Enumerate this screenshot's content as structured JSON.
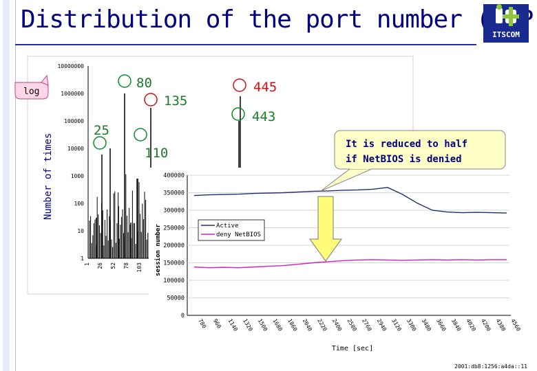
{
  "slide": {
    "title": "Distribution of the port number (TCP)",
    "footer": "2001:db8:1256:a4da::11"
  },
  "logo": {
    "text": "ITSCOM",
    "colors": {
      "bg": "#1a2b8f",
      "accent": "#8dc63f"
    }
  },
  "histogram": {
    "ylabel": "Number of times",
    "scale_note": "log",
    "yticks": [
      "10000000",
      "1000000",
      "100000",
      "10000",
      "1000",
      "100",
      "10",
      "1"
    ],
    "xticks": [
      "1",
      "26",
      "52",
      "78",
      "103"
    ],
    "callouts": [
      {
        "label": "80"
      },
      {
        "label": "135"
      },
      {
        "label": "445"
      },
      {
        "label": "443"
      },
      {
        "label": "25"
      },
      {
        "label": "110"
      }
    ]
  },
  "session_chart": {
    "ylabel": "session number",
    "xlabel": "Time [sec]",
    "yticks": [
      "400000",
      "350000",
      "300000",
      "250000",
      "200000",
      "150000",
      "100000",
      "50000",
      "0"
    ],
    "xticks": [
      "780",
      "960",
      "1140",
      "1320",
      "1500",
      "1680",
      "1860",
      "2040",
      "2220",
      "2400",
      "2580",
      "2760",
      "2940",
      "3120",
      "3300",
      "3480",
      "3660",
      "3840",
      "4020",
      "4200",
      "4380",
      "4560"
    ],
    "legend": [
      "Active",
      "deny NetBIOS"
    ]
  },
  "annotation": {
    "line1": "It is reduced to half",
    "line2": "if NetBIOS is denied"
  },
  "chart_data": [
    {
      "type": "bar",
      "title": "",
      "ylabel": "Number of times",
      "yscale": "log",
      "ylim": [
        1,
        10000000
      ],
      "series": [
        {
          "values": [
            30,
            6000,
            80,
            1000000,
            20,
            800,
            300000,
            800000,
            100000,
            10000,
            500,
            200,
            5000
          ]
        }
      ],
      "highlighted_ports": [
        "80",
        "135",
        "445",
        "443",
        "25",
        "110"
      ]
    },
    {
      "type": "line",
      "xlabel": "Time [sec]",
      "ylabel": "session number",
      "ylim": [
        0,
        400000
      ],
      "x": [
        780,
        960,
        1140,
        1320,
        1500,
        1680,
        1860,
        2040,
        2220,
        2400,
        2580,
        2760,
        2940,
        3120,
        3300,
        3480,
        3660,
        3840,
        4020,
        4200,
        4380,
        4560
      ],
      "series": [
        {
          "name": "Active",
          "color": "#1f2e6b",
          "values": [
            342000,
            344000,
            345000,
            346000,
            348000,
            349000,
            350000,
            352000,
            354000,
            355000,
            357000,
            358000,
            360000,
            365000,
            345000,
            320000,
            300000,
            295000,
            293000,
            294000,
            293000,
            292000
          ]
        },
        {
          "name": "deny NetBIOS",
          "color": "#d020c0",
          "values": [
            138000,
            136000,
            137000,
            136000,
            138000,
            140000,
            142000,
            146000,
            150000,
            153000,
            156000,
            158000,
            159000,
            158000,
            157000,
            158000,
            159000,
            158000,
            159000,
            158000,
            159000,
            159000
          ]
        }
      ]
    }
  ]
}
